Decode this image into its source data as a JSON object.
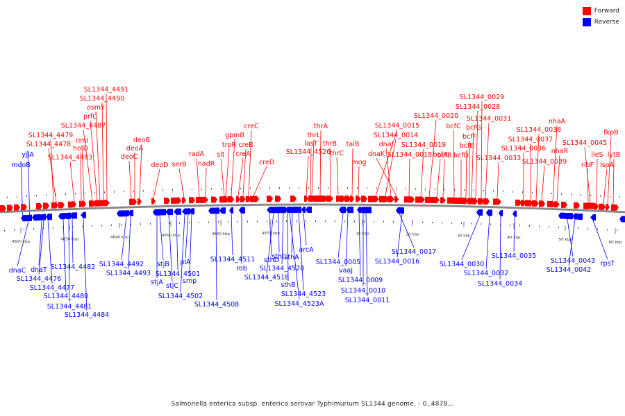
{
  "legend": [
    {
      "label": "Forward",
      "color": "#ff0000"
    },
    {
      "label": "Reverse",
      "color": "#0000ff"
    }
  ],
  "colors": {
    "forward": "#ff0000",
    "reverse": "#0000ff",
    "backbone": "#888888"
  },
  "caption": "Salmonella enterica subsp. enterica serovar Typhimurium SL1344 genome. - 0..4878...",
  "ticks": [
    "4820 kbp",
    "4830 kbp",
    "4840 kbp",
    "4850 kbp",
    "4860 kbp",
    "4870 kbp",
    "10 kbp",
    "20 kbp",
    "30 kbp",
    "40 kbp",
    "50 kbp",
    "60 kbp"
  ],
  "forward_genes": [
    "SL1344_4491",
    "SL1344_4490",
    "osmY",
    "prfC",
    "SL1344_4487",
    "SL1344_4479",
    "SL1344_4478",
    "rimI",
    "holD",
    "SL1344_4483",
    "deoB",
    "deoA",
    "deoC",
    "deoD",
    "serB",
    "radA",
    "nadR",
    "slt",
    "gpmB",
    "trpR",
    "creC",
    "creB",
    "creA",
    "creD",
    "SL1344_4526",
    "thrA",
    "thrL",
    "lasT",
    "thrB",
    "thrC",
    "talB",
    "mog",
    "SL1344_0015",
    "SL1344_0014",
    "dnaJ",
    "dnaK",
    "SL1344_0018",
    "SL1344_0019",
    "SL1344_0020",
    "bcfA",
    "bcfB",
    "bcfC",
    "bcfD",
    "bcfE",
    "bcfF",
    "bcfG",
    "SL1344_0028",
    "SL1344_0029",
    "SL1344_0031",
    "SL1344_0033",
    "SL1344_0036",
    "SL1344_0037",
    "SL1344_0038",
    "SL1344_0039",
    "nhaA",
    "nhaR",
    "SL1344_0045",
    "ribF",
    "ileS",
    "lspA",
    "fkpB",
    "lytB"
  ],
  "reverse_genes": [
    "yjjA",
    "mdoB",
    "dnaC",
    "dnaT",
    "SL1344_4476",
    "SL1344_4477",
    "SL1344_4480",
    "SL1344_4481",
    "SL1344_4482",
    "SL1344_4484",
    "SL1344_4492",
    "SL1344_4493",
    "stjB",
    "stjA",
    "stjC",
    "SL1344_4501",
    "SL1344_4502",
    "pIA",
    "smp",
    "SL1344_4508",
    "SL1344_4511",
    "rob",
    "sthD",
    "sthC",
    "SL1344_4520",
    "SL1344_4518",
    "sthB",
    "sthA",
    "arcA",
    "SL1344_4523",
    "SL1344_4523A",
    "SL1344_0005",
    "vaaJ",
    "SL1344_0009",
    "SL1344_0010",
    "SL1344_0011",
    "SL1344_0017",
    "SL1344_0016",
    "SL1344_0030",
    "SL1344_0032",
    "SL1344_0034",
    "SL1344_0035",
    "SL1344_0043",
    "SL1344_0042",
    "rpsT"
  ]
}
